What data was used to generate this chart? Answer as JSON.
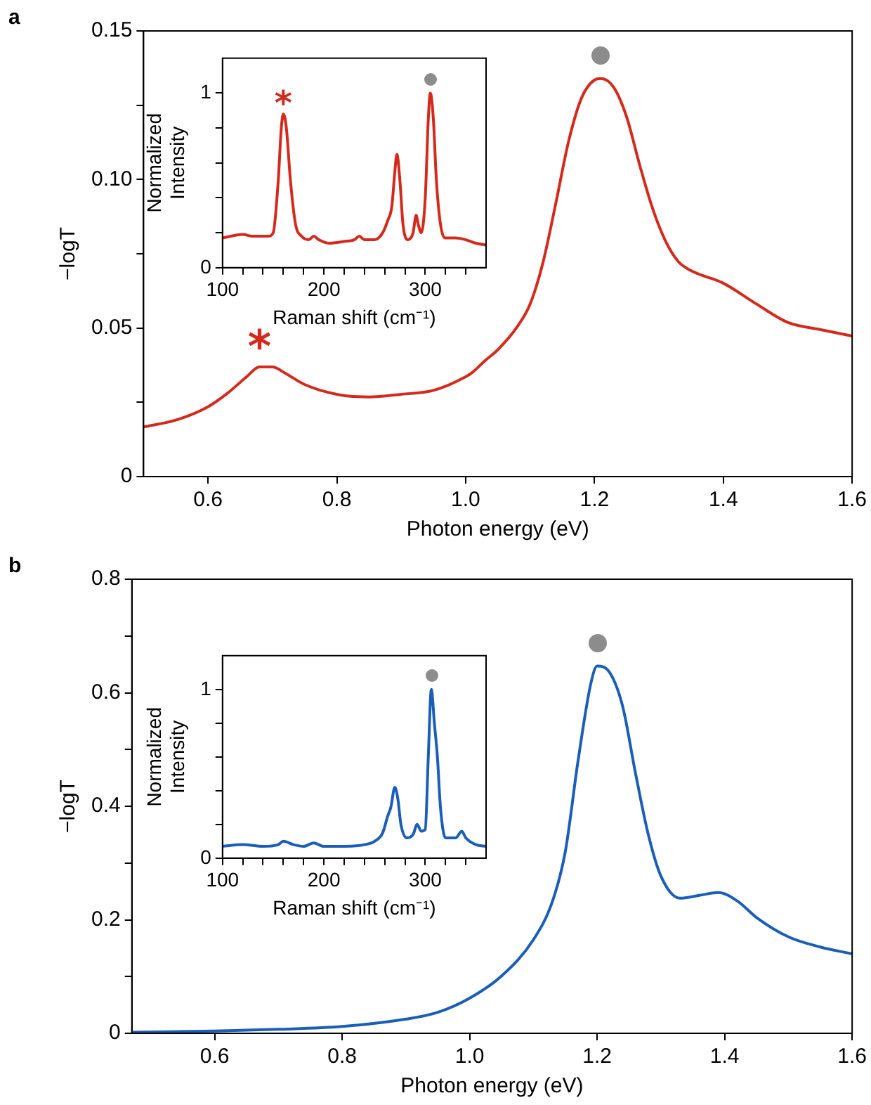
{
  "chart_data": [
    {
      "type": "line",
      "title": "a",
      "xlabel": "Photon energy (eV)",
      "ylabel": "−logT",
      "x": [
        0.5,
        0.55,
        0.6,
        0.63,
        0.66,
        0.68,
        0.7,
        0.72,
        0.75,
        0.8,
        0.85,
        0.9,
        0.95,
        1.0,
        1.01,
        1.03,
        1.05,
        1.08,
        1.1,
        1.12,
        1.14,
        1.16,
        1.18,
        1.2,
        1.21,
        1.23,
        1.25,
        1.27,
        1.29,
        1.31,
        1.33,
        1.35,
        1.4,
        1.45,
        1.5,
        1.55,
        1.6
      ],
      "series": [
        {
          "color": "#d42a1c",
          "values": [
            0.0167,
            0.019,
            0.0235,
            0.028,
            0.0336,
            0.0369,
            0.0369,
            0.0348,
            0.031,
            0.0277,
            0.0268,
            0.0277,
            0.029,
            0.0336,
            0.035,
            0.039,
            0.0427,
            0.0504,
            0.058,
            0.072,
            0.092,
            0.113,
            0.1275,
            0.1335,
            0.134,
            0.131,
            0.121,
            0.105,
            0.0904,
            0.0794,
            0.0724,
            0.0693,
            0.0651,
            0.0583,
            0.0519,
            0.0495,
            0.0473
          ]
        }
      ],
      "xlim": [
        0.5,
        1.6
      ],
      "xticks": [
        0.6,
        0.8,
        {
          "value": 1,
          "label": "1.0"
        },
        1.2,
        1.4,
        1.6
      ],
      "ylim": [
        0,
        0.15
      ],
      "yticks": [
        0,
        {
          "value": 0.025,
          "label": null
        },
        0.05,
        {
          "value": 0.075,
          "label": null
        },
        {
          "value": 0.1,
          "label": "0.10"
        },
        {
          "value": 0.125,
          "label": null
        },
        0.15
      ],
      "annotations": [
        {
          "text": "*",
          "x": 0.68,
          "y": 0.0369
        }
      ],
      "grid": false,
      "legend": false,
      "marker": "none"
    },
    {
      "type": "line",
      "xlabel": "Raman shift (cm⁻¹)",
      "ylabel": "Normalized Intensity",
      "x": [
        100,
        120,
        130,
        145,
        150,
        155,
        158,
        160,
        163,
        167,
        172,
        178,
        185,
        190,
        195,
        205,
        220,
        230,
        235,
        240,
        250,
        258,
        263,
        267,
        270,
        272,
        275,
        278,
        283,
        288,
        291,
        293,
        296,
        300,
        303,
        305,
        308,
        311,
        315,
        320,
        330,
        340,
        350,
        360
      ],
      "series": [
        {
          "color": "#d42a1c",
          "values": [
            0.17,
            0.19,
            0.18,
            0.18,
            0.2,
            0.5,
            0.8,
            0.88,
            0.8,
            0.5,
            0.25,
            0.18,
            0.16,
            0.18,
            0.16,
            0.14,
            0.15,
            0.16,
            0.18,
            0.16,
            0.16,
            0.2,
            0.27,
            0.35,
            0.55,
            0.65,
            0.5,
            0.25,
            0.16,
            0.2,
            0.3,
            0.25,
            0.2,
            0.4,
            0.85,
            1.0,
            0.85,
            0.5,
            0.25,
            0.17,
            0.17,
            0.16,
            0.14,
            0.13
          ]
        }
      ],
      "xlim": [
        100,
        360
      ],
      "xticks": [
        100,
        {
          "value": 120,
          "label": null
        },
        {
          "value": 140,
          "label": null
        },
        {
          "value": 160,
          "label": null
        },
        {
          "value": 180,
          "label": null
        },
        200,
        {
          "value": 220,
          "label": null
        },
        {
          "value": 240,
          "label": null
        },
        {
          "value": 260,
          "label": null
        },
        {
          "value": 280,
          "label": null
        },
        300,
        {
          "value": 320,
          "label": null
        },
        {
          "value": 340,
          "label": null
        }
      ],
      "ylim": [
        0,
        1.2
      ],
      "yticks": [
        0,
        {
          "value": 0.2,
          "label": null
        },
        {
          "value": 0.4,
          "label": null
        },
        {
          "value": 0.6,
          "label": null
        },
        {
          "value": 0.8,
          "label": null
        },
        1
      ],
      "annotations": [
        {
          "text": "*",
          "x": 160,
          "y": 0.88
        }
      ],
      "grid": false,
      "legend": false,
      "marker": "none"
    },
    {
      "type": "line",
      "title": "b",
      "xlabel": "Photon energy (eV)",
      "ylabel": "−logT",
      "x": [
        0.47,
        0.6,
        0.7,
        0.8,
        0.9,
        0.95,
        1.0,
        1.05,
        1.1,
        1.13,
        1.15,
        1.17,
        1.19,
        1.2,
        1.22,
        1.24,
        1.26,
        1.28,
        1.3,
        1.33,
        1.36,
        1.39,
        1.42,
        1.45,
        1.5,
        1.55,
        1.6
      ],
      "series": [
        {
          "color": "#1a5eb8",
          "values": [
            0.002,
            0.004,
            0.007,
            0.012,
            0.025,
            0.037,
            0.062,
            0.101,
            0.165,
            0.233,
            0.32,
            0.48,
            0.616,
            0.647,
            0.635,
            0.576,
            0.459,
            0.351,
            0.277,
            0.238,
            0.243,
            0.248,
            0.233,
            0.204,
            0.17,
            0.152,
            0.14
          ]
        }
      ],
      "xlim": [
        0.47,
        1.6
      ],
      "xticks": [
        0.6,
        0.8,
        {
          "value": 1,
          "label": "1.0"
        },
        1.2,
        1.4,
        1.6
      ],
      "ylim": [
        0,
        0.8
      ],
      "yticks": [
        0,
        {
          "value": 0.1,
          "label": null
        },
        0.2,
        {
          "value": 0.3,
          "label": null
        },
        0.4,
        {
          "value": 0.5,
          "label": null
        },
        0.6,
        {
          "value": 0.7,
          "label": null
        },
        0.8
      ],
      "grid": false,
      "legend": false,
      "marker": "none"
    },
    {
      "type": "line",
      "xlabel": "Raman shift (cm⁻¹)",
      "ylabel": "Normalized Intensity",
      "x": [
        100,
        120,
        140,
        155,
        160,
        170,
        180,
        190,
        200,
        220,
        240,
        250,
        258,
        263,
        266,
        270,
        273,
        276,
        282,
        288,
        292,
        296,
        300,
        303,
        306,
        309,
        312,
        315,
        320,
        330,
        336,
        340,
        350,
        360
      ],
      "series": [
        {
          "color": "#1a5eb8",
          "values": [
            0.07,
            0.08,
            0.07,
            0.08,
            0.1,
            0.08,
            0.07,
            0.09,
            0.07,
            0.07,
            0.08,
            0.1,
            0.15,
            0.25,
            0.3,
            0.42,
            0.35,
            0.2,
            0.12,
            0.14,
            0.2,
            0.16,
            0.17,
            0.6,
            1.0,
            0.8,
            0.6,
            0.3,
            0.12,
            0.12,
            0.16,
            0.12,
            0.08,
            0.07
          ]
        }
      ],
      "xlim": [
        100,
        360
      ],
      "xticks": [
        100,
        {
          "value": 120,
          "label": null
        },
        {
          "value": 140,
          "label": null
        },
        {
          "value": 160,
          "label": null
        },
        {
          "value": 180,
          "label": null
        },
        200,
        {
          "value": 220,
          "label": null
        },
        {
          "value": 240,
          "label": null
        },
        {
          "value": 260,
          "label": null
        },
        {
          "value": 280,
          "label": null
        },
        300,
        {
          "value": 320,
          "label": null
        },
        {
          "value": 340,
          "label": null
        }
      ],
      "ylim": [
        0,
        1.2
      ],
      "yticks": [
        0,
        {
          "value": 0.2,
          "label": null
        },
        {
          "value": 0.4,
          "label": null
        },
        {
          "value": 0.6,
          "label": null
        },
        {
          "value": 0.8,
          "label": null
        },
        1
      ],
      "grid": false,
      "legend": false,
      "marker": "none"
    }
  ]
}
